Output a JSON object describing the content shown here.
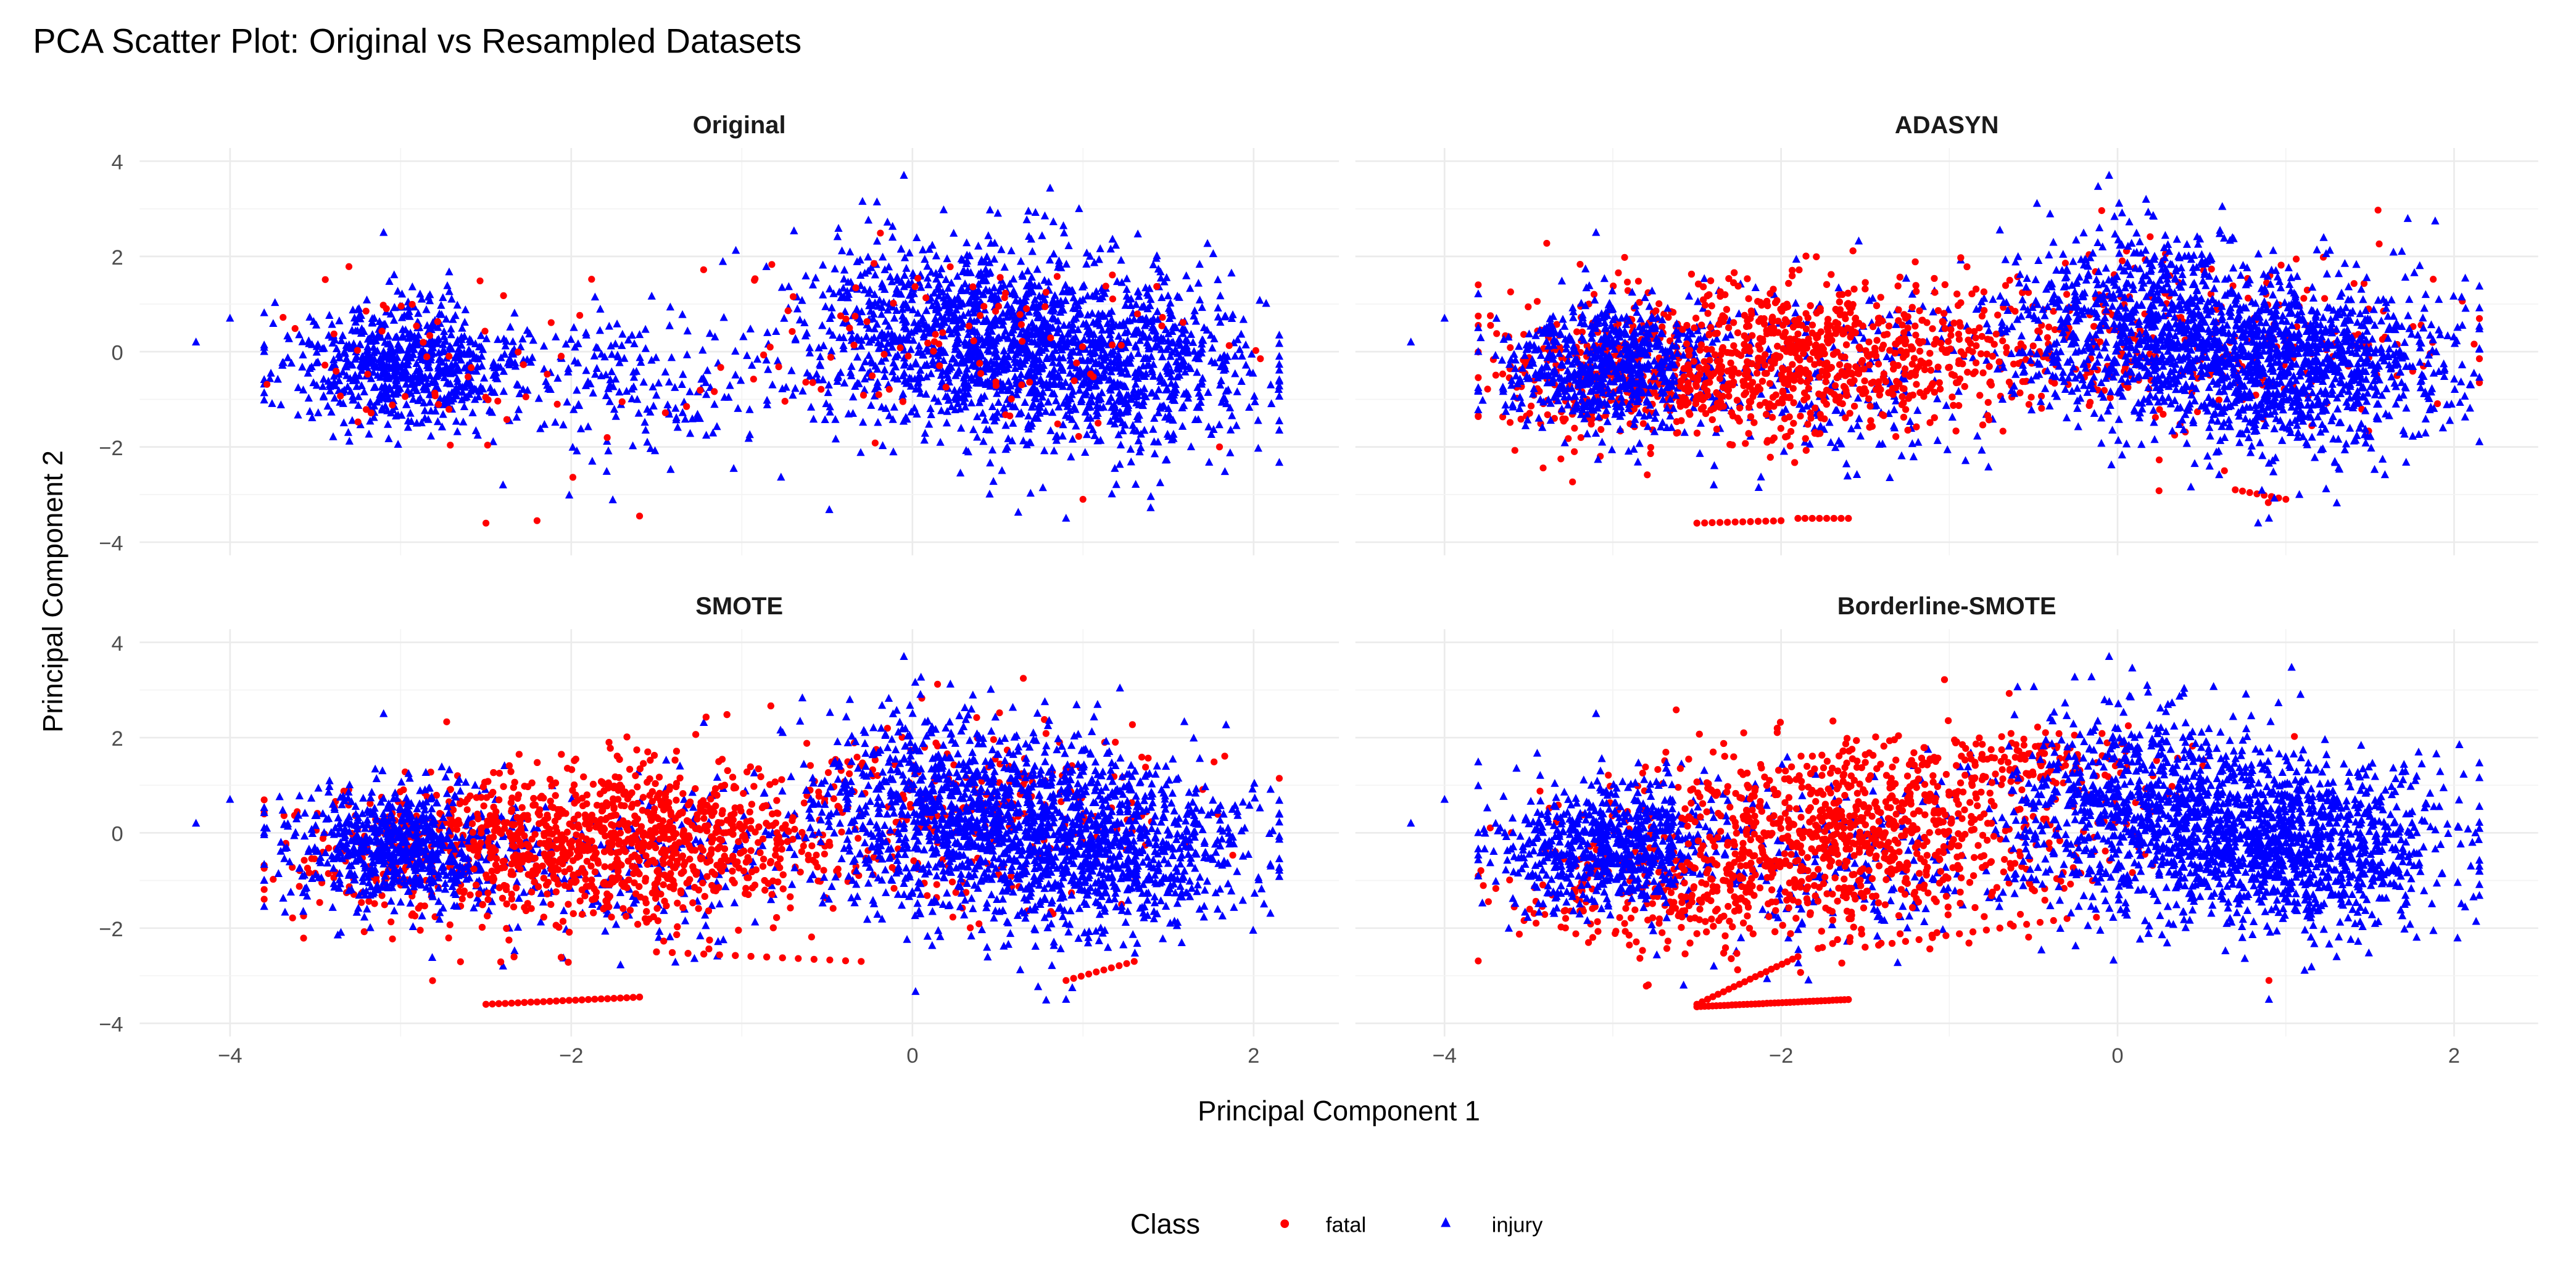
{
  "chart_data": {
    "type": "scatter",
    "title": "PCA Scatter Plot: Original vs Resampled Datasets",
    "xlabel": "Principal Component 1",
    "ylabel": "Principal Component 2",
    "xlim": [
      -4.53,
      2.5
    ],
    "ylim": [
      -4,
      4
    ],
    "xticks": [
      "−4",
      "−2",
      "0",
      "2"
    ],
    "xtick_values": [
      -4,
      -2,
      0,
      2
    ],
    "yticks": [
      "4",
      "2",
      "0",
      "−2",
      "−4"
    ],
    "ytick_values": [
      4,
      2,
      0,
      -2,
      -4
    ],
    "grid": true,
    "legend": {
      "title": "Class",
      "placement": "bottom",
      "entries": [
        {
          "label": "fatal",
          "color": "#ff0000",
          "shape": "circle"
        },
        {
          "label": "injury",
          "color": "#0000ff",
          "shape": "triangle"
        }
      ]
    },
    "injury_clusters_note_units": "data units; clusters approximate dense point clouds",
    "injury_clusters": [
      {
        "cx": -3.0,
        "cy": -0.3,
        "sx": 0.33,
        "sy": 0.65,
        "n": 700
      },
      {
        "cx": -1.6,
        "cy": -0.6,
        "sx": 0.55,
        "sy": 0.9,
        "n": 220
      },
      {
        "cx": 0.2,
        "cy": 0.5,
        "sx": 0.45,
        "sy": 1.0,
        "n": 900
      },
      {
        "cx": 1.1,
        "cy": -0.3,
        "sx": 0.45,
        "sy": 0.9,
        "n": 1000
      }
    ],
    "injury_outliers": [
      [
        -4.2,
        0.2
      ],
      [
        -4.0,
        0.7
      ],
      [
        -3.8,
        0.0
      ],
      [
        -3.1,
        2.5
      ],
      [
        -2.4,
        -2.8
      ],
      [
        0.9,
        -3.5
      ],
      [
        2.1,
        -0.7
      ],
      [
        -0.05,
        3.7
      ]
    ],
    "panels": [
      {
        "title": "Original",
        "fatal_clusters": [
          {
            "cx": -3.0,
            "cy": -0.2,
            "sx": 0.4,
            "sy": 0.8,
            "n": 40
          },
          {
            "cx": -1.5,
            "cy": -0.6,
            "sx": 0.6,
            "sy": 0.9,
            "n": 25
          },
          {
            "cx": 0.4,
            "cy": 0.2,
            "sx": 0.7,
            "sy": 1.0,
            "n": 90
          }
        ],
        "fatal_lines": [],
        "fatal_outliers": [
          [
            -2.5,
            -3.6
          ],
          [
            -2.2,
            -3.55
          ],
          [
            -1.6,
            -3.45
          ],
          [
            1.0,
            -3.1
          ],
          [
            1.8,
            -2.0
          ]
        ]
      },
      {
        "title": "ADASYN",
        "fatal_clusters": [
          {
            "cx": -1.8,
            "cy": -0.1,
            "sx": 0.7,
            "sy": 0.8,
            "n": 900
          },
          {
            "cx": -3.0,
            "cy": -0.5,
            "sx": 0.4,
            "sy": 0.7,
            "n": 250
          },
          {
            "cx": 0.5,
            "cy": 0.3,
            "sx": 0.7,
            "sy": 1.0,
            "n": 250
          }
        ],
        "fatal_lines": [
          {
            "x": [
              -2.5,
              -2.0
            ],
            "y": [
              -3.6,
              -3.55
            ],
            "n": 12
          },
          {
            "x": [
              -1.9,
              -1.6
            ],
            "y": [
              -3.5,
              -3.5
            ],
            "n": 8
          },
          {
            "x": [
              0.7,
              1.0
            ],
            "y": [
              -2.9,
              -3.1
            ],
            "n": 8
          }
        ],
        "fatal_outliers": []
      },
      {
        "title": "SMOTE",
        "fatal_clusters": [
          {
            "cx": -1.7,
            "cy": -0.2,
            "sx": 0.65,
            "sy": 0.85,
            "n": 1000
          },
          {
            "cx": -2.9,
            "cy": -0.4,
            "sx": 0.45,
            "sy": 0.7,
            "n": 250
          },
          {
            "cx": 0.4,
            "cy": 0.4,
            "sx": 0.6,
            "sy": 1.0,
            "n": 250
          }
        ],
        "fatal_lines": [
          {
            "x": [
              -2.5,
              -1.6
            ],
            "y": [
              -3.6,
              -3.45
            ],
            "n": 25
          },
          {
            "x": [
              -1.5,
              -0.3
            ],
            "y": [
              -2.5,
              -2.7
            ],
            "n": 14
          },
          {
            "x": [
              0.9,
              1.3
            ],
            "y": [
              -3.1,
              -2.7
            ],
            "n": 10
          }
        ],
        "fatal_outliers": []
      },
      {
        "title": "Borderline-SMOTE",
        "fatal_clusters": [
          {
            "cx": -1.6,
            "cy": 0.0,
            "sx": 0.7,
            "sy": 0.9,
            "n": 900
          },
          {
            "cx": -2.6,
            "cy": -1.3,
            "sx": 0.5,
            "sy": 0.6,
            "n": 250
          },
          {
            "cx": -0.6,
            "cy": 1.5,
            "sx": 0.5,
            "sy": 0.3,
            "n": 150
          }
        ],
        "fatal_lines": [
          {
            "x": [
              -2.5,
              -1.6
            ],
            "y": [
              -3.65,
              -3.5
            ],
            "n": 40
          },
          {
            "x": [
              -2.5,
              -1.9
            ],
            "y": [
              -3.6,
              -2.6
            ],
            "n": 20
          },
          {
            "x": [
              -1.5,
              -0.3
            ],
            "y": [
              -2.4,
              -1.8
            ],
            "n": 16
          }
        ],
        "fatal_outliers": [
          [
            0.9,
            -3.1
          ]
        ]
      }
    ]
  }
}
